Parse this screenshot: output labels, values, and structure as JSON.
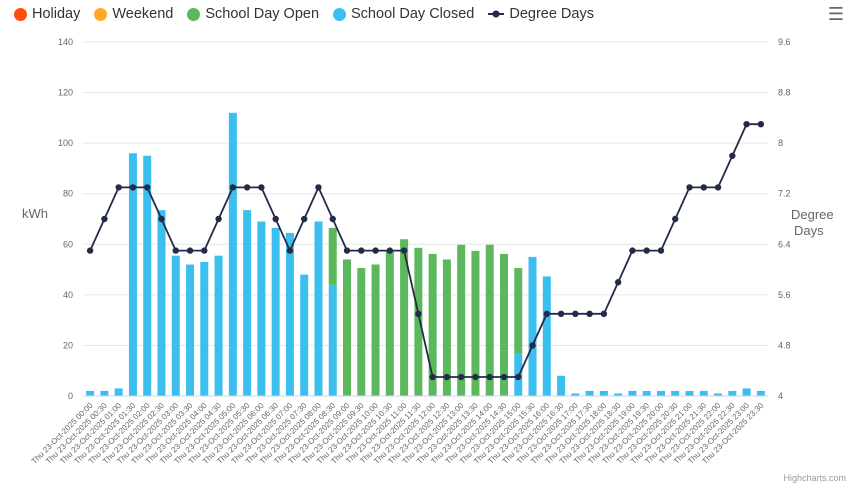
{
  "legend": [
    {
      "label": "Holiday",
      "color": "#fe4d0d"
    },
    {
      "label": "Weekend",
      "color": "#ffa82a"
    },
    {
      "label": "School Day Open",
      "color": "#5cb85c"
    },
    {
      "label": "School Day Closed",
      "color": "#3bbfee"
    },
    {
      "label": "Degree Days",
      "color": "#232b48"
    }
  ],
  "menu_icon": "hamburger-menu-icon",
  "credit": "Highcharts.com",
  "chart_data": {
    "type": "bar",
    "ylabel": "kWh",
    "y2label_line1": "Degree",
    "y2label_line2": "Days",
    "ylim": [
      0,
      140
    ],
    "y2lim": [
      4,
      9.6
    ],
    "yticks": [
      "0",
      "20",
      "40",
      "60",
      "80",
      "100",
      "120",
      "140"
    ],
    "y2ticks": [
      "4",
      "4.8",
      "5.6",
      "6.4",
      "7.2",
      "8",
      "8.8",
      "9.6"
    ],
    "grid": true,
    "legend_position": "top-left",
    "categories": [
      "Thu 23-Oct-2025 00:00",
      "Thu 23-Oct-2025 00:30",
      "Thu 23-Oct-2025 01:00",
      "Thu 23-Oct-2025 01:30",
      "Thu 23-Oct-2025 02:00",
      "Thu 23-Oct-2025 02:30",
      "Thu 23-Oct-2025 03:00",
      "Thu 23-Oct-2025 03:30",
      "Thu 23-Oct-2025 04:00",
      "Thu 23-Oct-2025 04:30",
      "Thu 23-Oct-2025 05:00",
      "Thu 23-Oct-2025 05:30",
      "Thu 23-Oct-2025 06:00",
      "Thu 23-Oct-2025 06:30",
      "Thu 23-Oct-2025 07:00",
      "Thu 23-Oct-2025 07:30",
      "Thu 23-Oct-2025 08:00",
      "Thu 23-Oct-2025 08:30",
      "Thu 23-Oct-2025 09:00",
      "Thu 23-Oct-2025 09:30",
      "Thu 23-Oct-2025 10:00",
      "Thu 23-Oct-2025 10:30",
      "Thu 23-Oct-2025 11:00",
      "Thu 23-Oct-2025 11:30",
      "Thu 23-Oct-2025 12:00",
      "Thu 23-Oct-2025 12:30",
      "Thu 23-Oct-2025 13:00",
      "Thu 23-Oct-2025 13:30",
      "Thu 23-Oct-2025 14:00",
      "Thu 23-Oct-2025 14:30",
      "Thu 23-Oct-2025 15:00",
      "Thu 23-Oct-2025 15:30",
      "Thu 23-Oct-2025 16:00",
      "Thu 23-Oct-2025 16:30",
      "Thu 23-Oct-2025 17:00",
      "Thu 23-Oct-2025 17:30",
      "Thu 23-Oct-2025 18:00",
      "Thu 23-Oct-2025 18:30",
      "Thu 23-Oct-2025 19:00",
      "Thu 23-Oct-2025 19:30",
      "Thu 23-Oct-2025 20:00",
      "Thu 23-Oct-2025 20:30",
      "Thu 23-Oct-2025 21:00",
      "Thu 23-Oct-2025 21:30",
      "Thu 23-Oct-2025 22:00",
      "Thu 23-Oct-2025 22:30",
      "Thu 23-Oct-2025 23:00",
      "Thu 23-Oct-2025 23:30"
    ],
    "series": [
      {
        "name": "School Day Closed",
        "color": "#3bbfee",
        "values": [
          2,
          2,
          3,
          96,
          95,
          73.5,
          55.5,
          52,
          53,
          55.5,
          112,
          73.5,
          69,
          66.5,
          64.5,
          48,
          69,
          44,
          0,
          0,
          0,
          0,
          0,
          0,
          0,
          0,
          0,
          0,
          0,
          0,
          17,
          55,
          47.3,
          8,
          1,
          2,
          2,
          1,
          2,
          2,
          2,
          2,
          2,
          2,
          1,
          2,
          3,
          2
        ]
      },
      {
        "name": "School Day Open",
        "color": "#5cb85c",
        "values": [
          0,
          0,
          0,
          0,
          0,
          0,
          0,
          0,
          0,
          0,
          0,
          0,
          0,
          0,
          0,
          0,
          0,
          22.5,
          54,
          50.6,
          52,
          57.7,
          62,
          58.6,
          56.2,
          54,
          59.8,
          57.4,
          59.8,
          56.2,
          33.6,
          0,
          0,
          0,
          0,
          0,
          0,
          0,
          0,
          0,
          0,
          0,
          0,
          0,
          0,
          0,
          0,
          0
        ]
      },
      {
        "name": "Degree Days",
        "color": "#232b48",
        "axis": "right",
        "values": [
          6.3,
          6.8,
          7.3,
          7.3,
          7.3,
          6.8,
          6.3,
          6.3,
          6.3,
          6.8,
          7.3,
          7.3,
          7.3,
          6.8,
          6.3,
          6.8,
          7.3,
          6.8,
          6.3,
          6.3,
          6.3,
          6.3,
          6.3,
          5.3,
          4.3,
          4.3,
          4.3,
          4.3,
          4.3,
          4.3,
          4.3,
          4.8,
          5.3,
          5.3,
          5.3,
          5.3,
          5.3,
          5.8,
          6.3,
          6.3,
          6.3,
          6.8,
          7.3,
          7.3,
          7.3,
          7.8,
          8.3,
          8.3
        ]
      }
    ]
  }
}
